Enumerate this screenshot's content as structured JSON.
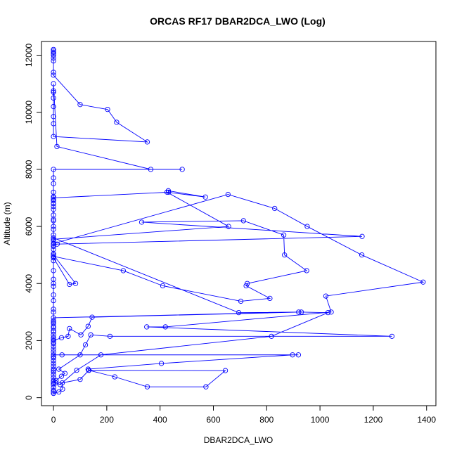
{
  "chart_data": {
    "type": "line",
    "title": "ORCAS RF17 DBAR2DCA_LWO (Log)",
    "xlabel": "DBAR2DCA_LWO",
    "ylabel": "Altitude (m)",
    "xlim": [
      -45,
      1435
    ],
    "ylim": [
      -280,
      12480
    ],
    "xticks": [
      0,
      200,
      400,
      600,
      800,
      1000,
      1200,
      1400
    ],
    "yticks": [
      0,
      2000,
      4000,
      6000,
      8000,
      10000,
      12000
    ],
    "grid": false,
    "colors": {
      "series": "#0000ff",
      "axis": "#000000"
    },
    "series": [
      {
        "points": [
          [
            0,
            12200
          ],
          [
            0,
            12150
          ],
          [
            0,
            12100
          ],
          [
            0,
            12050
          ],
          [
            0,
            12000
          ],
          [
            0,
            11900
          ],
          [
            0,
            11800
          ],
          [
            0,
            11400
          ],
          [
            0,
            11300
          ],
          [
            100,
            10270
          ],
          [
            203,
            10100
          ],
          [
            237,
            9650
          ],
          [
            352,
            8960
          ],
          [
            0,
            9150
          ],
          [
            0,
            9600
          ],
          [
            0,
            9850
          ],
          [
            0,
            10200
          ],
          [
            0,
            10500
          ],
          [
            0,
            10700
          ],
          [
            0,
            10750
          ],
          [
            0,
            11000
          ],
          [
            13,
            8800
          ],
          [
            365,
            8000
          ],
          [
            483,
            8000
          ],
          [
            0,
            8000
          ],
          [
            0,
            7700
          ],
          [
            0,
            7500
          ],
          [
            0,
            7200
          ],
          [
            0,
            7050
          ],
          [
            0,
            6950
          ],
          [
            0,
            6900
          ],
          [
            0,
            6800
          ],
          [
            0,
            6700
          ],
          [
            0,
            6600
          ],
          [
            0,
            6250
          ],
          [
            0,
            6000
          ],
          [
            0,
            5700
          ],
          [
            0,
            5500
          ],
          [
            0,
            5400
          ],
          [
            655,
            7120
          ],
          [
            830,
            6630
          ],
          [
            952,
            6000
          ],
          [
            1157,
            5000
          ],
          [
            1387,
            4050
          ],
          [
            1022,
            3560
          ],
          [
            1042,
            3000
          ],
          [
            420,
            2480
          ],
          [
            350,
            2480
          ],
          [
            1270,
            2150
          ],
          [
            212,
            2150
          ],
          [
            140,
            2200
          ],
          [
            120,
            1850
          ],
          [
            100,
            1500
          ],
          [
            20,
            1000
          ],
          [
            43,
            850
          ],
          [
            30,
            750
          ],
          [
            10,
            600
          ],
          [
            0,
            550
          ],
          [
            0,
            500
          ],
          [
            0,
            450
          ],
          [
            0,
            350
          ],
          [
            0,
            250
          ],
          [
            0,
            200
          ],
          [
            0,
            150
          ],
          [
            20,
            200
          ],
          [
            34,
            300
          ],
          [
            33,
            520
          ],
          [
            100,
            640
          ],
          [
            133,
            960
          ],
          [
            230,
            730
          ],
          [
            352,
            380
          ],
          [
            572,
            380
          ],
          [
            645,
            950
          ],
          [
            132,
            960
          ],
          [
            130,
            1000
          ],
          [
            405,
            1200
          ],
          [
            897,
            1500
          ],
          [
            919,
            1500
          ],
          [
            32,
            1500
          ],
          [
            0,
            1500
          ],
          [
            0,
            1800
          ],
          [
            0,
            1900
          ],
          [
            0,
            2050
          ],
          [
            0,
            2300
          ],
          [
            0,
            2450
          ],
          [
            0,
            2600
          ],
          [
            0,
            2700
          ],
          [
            0,
            3000
          ],
          [
            0,
            3100
          ],
          [
            0,
            3400
          ],
          [
            0,
            3600
          ],
          [
            0,
            3900
          ],
          [
            0,
            4000
          ],
          [
            0,
            4150
          ],
          [
            0,
            4450
          ],
          [
            0,
            4800
          ],
          [
            0,
            4950
          ],
          [
            0,
            5000
          ],
          [
            83,
            4000
          ],
          [
            60,
            3970
          ],
          [
            0,
            4900
          ],
          [
            0,
            5200
          ],
          [
            0,
            5300
          ],
          [
            0,
            5350
          ],
          [
            14,
            5380
          ],
          [
            1158,
            5650
          ],
          [
            331,
            6150
          ],
          [
            713,
            6200
          ],
          [
            864,
            5700
          ],
          [
            867,
            5000
          ],
          [
            950,
            4450
          ],
          [
            727,
            4000
          ],
          [
            723,
            3920
          ],
          [
            812,
            3480
          ],
          [
            703,
            3380
          ],
          [
            410,
            3920
          ],
          [
            262,
            4450
          ],
          [
            0,
            4950
          ],
          [
            0,
            5050
          ],
          [
            0,
            5400
          ],
          [
            0,
            5550
          ],
          [
            657,
            6000
          ],
          [
            426,
            7200
          ],
          [
            570,
            7030
          ],
          [
            431,
            7250
          ],
          [
            432,
            7200
          ],
          [
            0,
            7000
          ],
          [
            0,
            6800
          ],
          [
            0,
            6400
          ],
          [
            0,
            6200
          ],
          [
            0,
            5900
          ],
          [
            0,
            5600
          ],
          [
            695,
            2980
          ],
          [
            930,
            3000
          ],
          [
            145,
            2820
          ],
          [
            130,
            2500
          ],
          [
            103,
            2200
          ],
          [
            60,
            2420
          ],
          [
            55,
            2150
          ],
          [
            30,
            2100
          ],
          [
            0,
            2000
          ],
          [
            0,
            1950
          ],
          [
            0,
            1700
          ],
          [
            0,
            1450
          ],
          [
            0,
            1300
          ],
          [
            0,
            1200
          ],
          [
            0,
            1100
          ],
          [
            0,
            950
          ],
          [
            0,
            900
          ],
          [
            0,
            800
          ],
          [
            0,
            700
          ],
          [
            0,
            600
          ],
          [
            8,
            520
          ],
          [
            25,
            460
          ],
          [
            87,
            960
          ],
          [
            178,
            1500
          ],
          [
            818,
            2150
          ],
          [
            1030,
            2980
          ],
          [
            920,
            3000
          ],
          [
            0,
            2800
          ],
          [
            0,
            2650
          ],
          [
            0,
            2500
          ],
          [
            0,
            2350
          ],
          [
            0,
            2200
          ],
          [
            0,
            2100
          ],
          [
            0,
            1600
          ],
          [
            0,
            1400
          ],
          [
            0,
            1000
          ]
        ]
      }
    ]
  }
}
